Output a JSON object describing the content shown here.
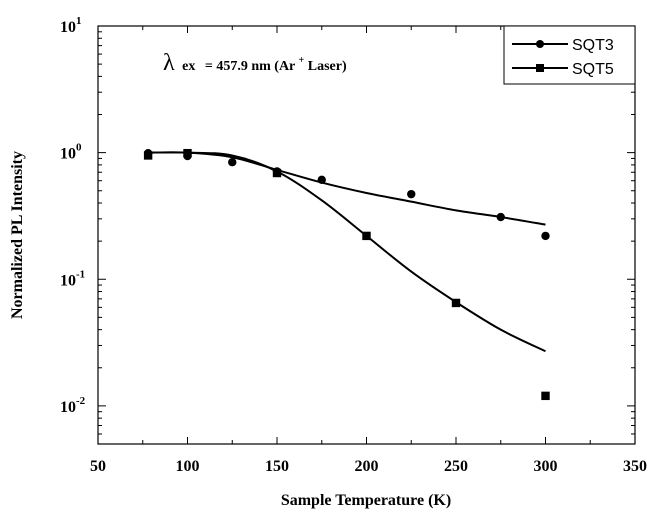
{
  "chart_data": {
    "type": "scatter",
    "xlabel": "Sample Temperature (K)",
    "ylabel": "Normalized PL Intensity",
    "xlim": [
      50,
      350
    ],
    "ylim": [
      0.005,
      10
    ],
    "y_scale": "log",
    "x_ticks": [
      "50",
      "100",
      "150",
      "200",
      "250",
      "300",
      "350"
    ],
    "y_ticks": [
      {
        "base": "10",
        "exp": "1"
      },
      {
        "base": "10",
        "exp": "0"
      },
      {
        "base": "10",
        "exp": "-1"
      },
      {
        "base": "10",
        "exp": "-2"
      }
    ],
    "annotation": {
      "lambda": "λ",
      "subscript": "ex",
      "text": "= 457.9 nm (Ar",
      "sup": "+",
      "text_end": " Laser)"
    },
    "legend_position": "top-right",
    "series": [
      {
        "name": "SQT3",
        "marker": "circle",
        "points": [
          [
            78,
            0.99
          ],
          [
            100,
            0.94
          ],
          [
            125,
            0.84
          ],
          [
            150,
            0.71
          ],
          [
            175,
            0.61
          ],
          [
            225,
            0.47
          ],
          [
            275,
            0.31
          ],
          [
            300,
            0.22
          ]
        ],
        "fit": [
          [
            78,
            1.0
          ],
          [
            100,
            1.0
          ],
          [
            125,
            0.92
          ],
          [
            150,
            0.73
          ],
          [
            175,
            0.58
          ],
          [
            200,
            0.48
          ],
          [
            225,
            0.41
          ],
          [
            250,
            0.35
          ],
          [
            275,
            0.31
          ],
          [
            300,
            0.27
          ]
        ]
      },
      {
        "name": "SQT5",
        "marker": "square",
        "points": [
          [
            78,
            0.95
          ],
          [
            100,
            0.99
          ],
          [
            150,
            0.69
          ],
          [
            200,
            0.22
          ],
          [
            250,
            0.065
          ],
          [
            300,
            0.012
          ]
        ],
        "fit": [
          [
            78,
            1.0
          ],
          [
            100,
            1.0
          ],
          [
            125,
            0.95
          ],
          [
            150,
            0.71
          ],
          [
            175,
            0.42
          ],
          [
            200,
            0.22
          ],
          [
            225,
            0.115
          ],
          [
            250,
            0.066
          ],
          [
            275,
            0.04
          ],
          [
            300,
            0.027
          ]
        ]
      }
    ]
  }
}
